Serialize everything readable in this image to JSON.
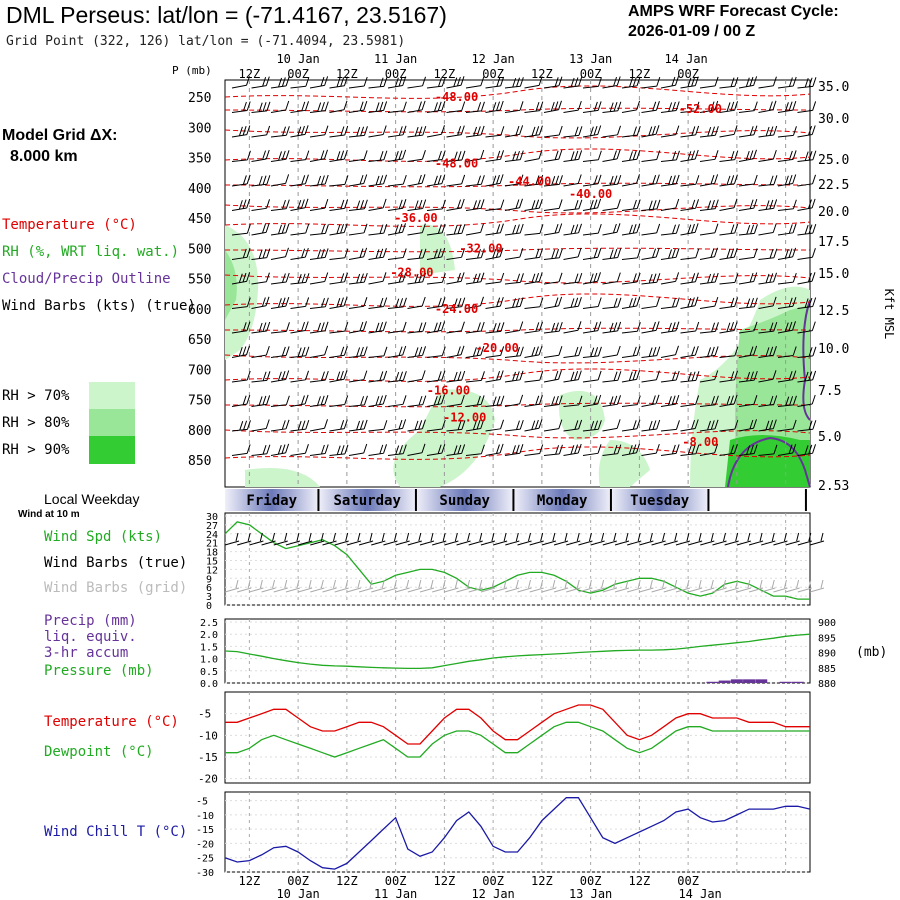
{
  "header": {
    "title": "DML Perseus:  lat/lon = (-71.4167, 23.5167)",
    "grid_point": "Grid Point (322, 126) lat/lon = (-71.4094, 23.5981)",
    "cycle_line1": "AMPS WRF Forecast Cycle:",
    "cycle_line2": "2026-01-09 / 00  Z"
  },
  "side": {
    "model_grid_line1": "Model Grid ΔX:",
    "model_grid_line2": "8.000 km"
  },
  "colors": {
    "temperature": "#e00000",
    "rh": "#22aa22",
    "cloud": "#663399",
    "wind": "#000000",
    "wind_grid": "#aaaaaa",
    "wind_chill": "#1a1aa6",
    "rh70": "#ccf5cc",
    "rh80": "#99e699",
    "rh90": "#33cc33"
  },
  "legend": {
    "temperature": "Temperature (°C)",
    "rh": "RH (%, WRT liq. wat.)",
    "cloud": "Cloud/Precip Outline",
    "wind": "Wind Barbs (kts) (true)",
    "rh70": "RH > 70%",
    "rh80": "RH > 80%",
    "rh90": "RH > 90%"
  },
  "time_axis": {
    "top_labels": [
      "12Z",
      "00Z",
      "12Z",
      "00Z",
      "12Z",
      "00Z",
      "12Z",
      "00Z",
      "12Z",
      "00Z"
    ],
    "date_labels": [
      "10 Jan",
      "11 Jan",
      "12 Jan",
      "13 Jan",
      "14 Jan"
    ],
    "weekday_title": "Local Weekday",
    "weekdays": [
      "Friday",
      "Saturday",
      "Sunday",
      "Monday",
      "Tuesday"
    ]
  },
  "chart_data": [
    {
      "type": "line",
      "title": "Vertical cross-section (temperature contours, RH shading, wind barbs)",
      "ylabel": "P (mb)",
      "y_right_label": "Kft MSL",
      "pressure_ticks": [
        250,
        300,
        350,
        400,
        450,
        500,
        550,
        600,
        650,
        700,
        750,
        800,
        850
      ],
      "height_ticks": [
        "35.0",
        "30.0",
        "25.0",
        "22.5",
        "20.0",
        "17.5",
        "15.0",
        "12.5",
        "10.0",
        "7.5",
        "5.0",
        "2.53"
      ],
      "temperature_labels": [
        {
          "level_mb": 250,
          "hour": 57,
          "value": "-48.00"
        },
        {
          "level_mb": 270,
          "hour": 117,
          "value": "-52.00"
        },
        {
          "level_mb": 360,
          "hour": 57,
          "value": "-48.00"
        },
        {
          "level_mb": 390,
          "hour": 75,
          "value": "-44.00"
        },
        {
          "level_mb": 410,
          "hour": 90,
          "value": "-40.00"
        },
        {
          "level_mb": 450,
          "hour": 47,
          "value": "-36.00"
        },
        {
          "level_mb": 500,
          "hour": 63,
          "value": "-32.00"
        },
        {
          "level_mb": 540,
          "hour": 46,
          "value": "-28.00"
        },
        {
          "level_mb": 600,
          "hour": 57,
          "value": "-24.00"
        },
        {
          "level_mb": 665,
          "hour": 67,
          "value": "-20.00"
        },
        {
          "level_mb": 735,
          "hour": 55,
          "value": "-16.00"
        },
        {
          "level_mb": 780,
          "hour": 59,
          "value": "-12.00"
        },
        {
          "level_mb": 820,
          "hour": 117,
          "value": "-8.00"
        }
      ]
    },
    {
      "type": "line",
      "title": "Wind at 10 m",
      "label": "Wind at 10 m",
      "series_labels": [
        "Wind Spd (kts)",
        "Wind Barbs (true)",
        "Wind Barbs (grid)"
      ],
      "y_ticks": [
        30,
        27,
        24,
        21,
        18,
        15,
        12,
        9,
        6,
        3,
        0
      ],
      "ylim": [
        0,
        30
      ],
      "hours": [
        0,
        3,
        6,
        9,
        12,
        15,
        18,
        21,
        24,
        27,
        30,
        33,
        36,
        39,
        42,
        45,
        48,
        51,
        54,
        57,
        60,
        63,
        66,
        69,
        72,
        75,
        78,
        81,
        84,
        87,
        90,
        93,
        96,
        99,
        102,
        105,
        108,
        111,
        114,
        117,
        120,
        123,
        126,
        129,
        132,
        135,
        138,
        141,
        144
      ],
      "wind_speed_kts": [
        24,
        28,
        27,
        24,
        21,
        19,
        20,
        21,
        22,
        20,
        17,
        12,
        7,
        8,
        10,
        11,
        12,
        12,
        11,
        9,
        6,
        5,
        6,
        8,
        10,
        11,
        11,
        10,
        8,
        5,
        4,
        5,
        7,
        8,
        9,
        9,
        8,
        6,
        4,
        3,
        4,
        7,
        8,
        7,
        5,
        3,
        3,
        2,
        2
      ]
    },
    {
      "type": "line",
      "title": "Precip / Pressure",
      "series_labels": [
        "Precip (mm)",
        "liq. equiv.",
        "3-hr accum",
        "Pressure (mb)"
      ],
      "precip_ticks": [
        "2.5",
        "2.0",
        "1.5",
        "1.0",
        "0.5",
        "0.0"
      ],
      "pressure_ticks": [
        "900",
        "895",
        "890",
        "885",
        "880"
      ],
      "pressure_unit": "(mb)",
      "hours": [
        0,
        3,
        6,
        9,
        12,
        15,
        18,
        21,
        24,
        27,
        30,
        33,
        36,
        39,
        42,
        45,
        48,
        51,
        54,
        57,
        60,
        63,
        66,
        69,
        72,
        75,
        78,
        81,
        84,
        87,
        90,
        93,
        96,
        99,
        102,
        105,
        108,
        111,
        114,
        117,
        120,
        123,
        126,
        129,
        132,
        135,
        138,
        141,
        144
      ],
      "pressure_mb": [
        890.5,
        890.3,
        889.5,
        888.8,
        888.0,
        887.3,
        886.7,
        886.2,
        885.8,
        885.6,
        885.5,
        885.3,
        885.1,
        885.0,
        884.9,
        884.8,
        884.8,
        885.0,
        885.7,
        886.4,
        887.1,
        887.6,
        888.2,
        888.6,
        888.9,
        889.1,
        889.3,
        889.5,
        889.7,
        890.0,
        890.2,
        890.4,
        890.6,
        890.7,
        890.8,
        890.8,
        890.9,
        891.1,
        891.5,
        892.0,
        892.4,
        892.8,
        893.2,
        893.6,
        894.2,
        894.7,
        895.3,
        895.7,
        896.0
      ],
      "precip_mm": [
        0,
        0,
        0,
        0,
        0,
        0,
        0,
        0,
        0,
        0,
        0,
        0,
        0,
        0,
        0,
        0,
        0,
        0,
        0,
        0,
        0,
        0,
        0,
        0,
        0,
        0,
        0,
        0,
        0,
        0,
        0,
        0,
        0,
        0,
        0,
        0,
        0,
        0,
        0,
        0,
        0.05,
        0.1,
        0.15,
        0.15,
        0.15,
        0.0,
        0.05,
        0.05,
        0.0
      ]
    },
    {
      "type": "line",
      "title": "Temperature / Dewpoint",
      "series_labels": [
        "Temperature (°C)",
        "Dewpoint (°C)"
      ],
      "y_ticks": [
        -5,
        -10,
        -15,
        -20
      ],
      "ylim": [
        -21,
        0
      ],
      "hours": [
        0,
        3,
        6,
        9,
        12,
        15,
        18,
        21,
        24,
        27,
        30,
        33,
        36,
        39,
        42,
        45,
        48,
        51,
        54,
        57,
        60,
        63,
        66,
        69,
        72,
        75,
        78,
        81,
        84,
        87,
        90,
        93,
        96,
        99,
        102,
        105,
        108,
        111,
        114,
        117,
        120,
        123,
        126,
        129,
        132,
        135,
        138,
        141,
        144
      ],
      "temperature": [
        -7,
        -7,
        -6,
        -5,
        -4,
        -4,
        -6,
        -8,
        -9,
        -9,
        -8,
        -7,
        -7,
        -8,
        -10,
        -12,
        -12,
        -9,
        -6,
        -4,
        -4,
        -6,
        -9,
        -11,
        -11,
        -9,
        -7,
        -5,
        -4,
        -3,
        -3,
        -4,
        -7,
        -10,
        -11,
        -10,
        -8,
        -6,
        -5,
        -5,
        -6,
        -6,
        -6,
        -7,
        -7,
        -7,
        -8,
        -8,
        -8
      ],
      "dewpoint": [
        -14,
        -14,
        -13,
        -11,
        -10,
        -11,
        -12,
        -13,
        -14,
        -15,
        -14,
        -13,
        -12,
        -11,
        -13,
        -15,
        -15,
        -12,
        -10,
        -9,
        -9,
        -10,
        -12,
        -14,
        -14,
        -12,
        -10,
        -8,
        -7,
        -7,
        -8,
        -9,
        -11,
        -13,
        -14,
        -13,
        -11,
        -9,
        -8,
        -8,
        -9,
        -9,
        -9,
        -9,
        -9,
        -9,
        -9,
        -9,
        -9
      ]
    },
    {
      "type": "line",
      "title": "Wind Chill",
      "series_labels": [
        "Wind Chill T (°C)"
      ],
      "y_ticks": [
        -5,
        -10,
        -15,
        -20,
        -25,
        -30
      ],
      "ylim": [
        -30,
        -2
      ],
      "hours": [
        0,
        3,
        6,
        9,
        12,
        15,
        18,
        21,
        24,
        27,
        30,
        33,
        36,
        39,
        42,
        45,
        48,
        51,
        54,
        57,
        60,
        63,
        66,
        69,
        72,
        75,
        78,
        81,
        84,
        87,
        90,
        93,
        96,
        99,
        102,
        105,
        108,
        111,
        114,
        117,
        120,
        123,
        126,
        129,
        132,
        135,
        138,
        141,
        144
      ],
      "wind_chill": [
        -25,
        -26.5,
        -26,
        -24,
        -21.5,
        -21,
        -23,
        -26,
        -28.5,
        -29,
        -27,
        -23,
        -19,
        -15,
        -11,
        -22,
        -24.5,
        -23,
        -18,
        -12,
        -9,
        -14,
        -21,
        -23,
        -23,
        -18,
        -12,
        -8,
        -4,
        -4,
        -11,
        -18,
        -20,
        -18,
        -16,
        -14,
        -12,
        -9,
        -8,
        -11,
        -12.5,
        -12,
        -10,
        -8,
        -8,
        -8,
        -7,
        -7,
        -8
      ]
    }
  ]
}
